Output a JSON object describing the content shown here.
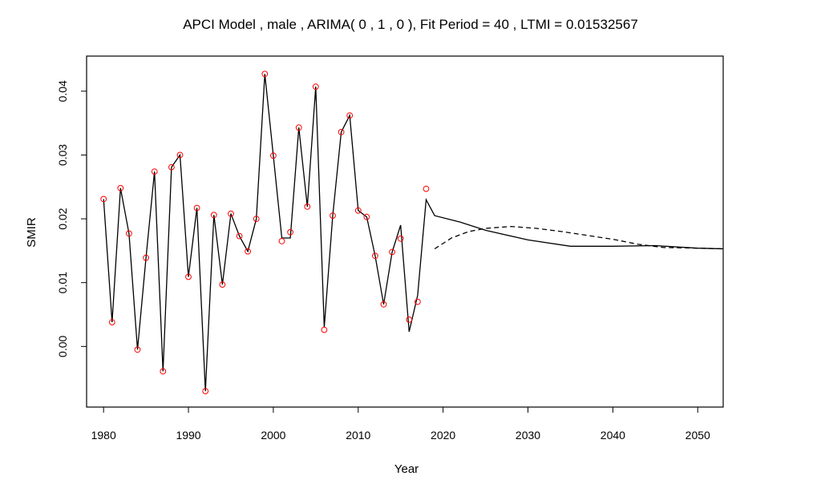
{
  "chart_data": {
    "type": "line",
    "title": "APCI  Model , male , ARIMA( 0 , 1 , 0 ), Fit Period =  40 , LTMI =  0.01532567",
    "xlabel": "Year",
    "ylabel": "SMIR",
    "xlim": [
      1978,
      2053
    ],
    "ylim": [
      -0.0095,
      0.0455
    ],
    "xticks": [
      1980,
      1990,
      2000,
      2010,
      2020,
      2030,
      2040,
      2050
    ],
    "yticks": [
      0.0,
      0.01,
      0.02,
      0.03,
      0.04
    ],
    "ytick_labels": [
      "0.00",
      "0.01",
      "0.02",
      "0.03",
      "0.04"
    ],
    "grid": false,
    "observed_points": {
      "marker": "open-circle",
      "color": "#ff0000",
      "x": [
        1980,
        1981,
        1982,
        1983,
        1984,
        1985,
        1986,
        1987,
        1988,
        1989,
        1990,
        1991,
        1992,
        1993,
        1994,
        1995,
        1996,
        1997,
        1998,
        1999,
        2000,
        2001,
        2002,
        2003,
        2004,
        2005,
        2006,
        2007,
        2008,
        2009,
        2010,
        2011,
        2012,
        2013,
        2014,
        2015,
        2016,
        2017,
        2018
      ],
      "y": [
        0.0231,
        0.0038,
        0.0248,
        0.0177,
        -0.0005,
        0.0139,
        0.0274,
        -0.0039,
        0.0281,
        0.03,
        0.0109,
        0.0217,
        -0.007,
        0.0206,
        0.0097,
        0.0208,
        0.0173,
        0.0149,
        0.02,
        0.0427,
        0.0299,
        0.0165,
        0.0179,
        0.0343,
        0.0219,
        0.0407,
        0.0026,
        0.0205,
        0.0336,
        0.0362,
        0.0213,
        0.0203,
        0.0142,
        0.0066,
        0.0148,
        0.0169,
        0.0042,
        0.007,
        0.0247
      ]
    },
    "series": [
      {
        "style": "solid",
        "color": "#000000",
        "x": [
          1980,
          1981,
          1982,
          1983,
          1984,
          1985,
          1986,
          1987,
          1988,
          1989,
          1990,
          1991,
          1992,
          1993,
          1994,
          1995,
          1996,
          1997,
          1998,
          1999,
          2000,
          2001,
          2002,
          2003,
          2004,
          2005,
          2006,
          2007,
          2008,
          2009,
          2010,
          2011,
          2012,
          2013,
          2014,
          2015,
          2016,
          2017,
          2018,
          2019,
          2022,
          2025,
          2030,
          2035,
          2040,
          2045,
          2050,
          2053
        ],
        "y": [
          0.0231,
          0.0038,
          0.0248,
          0.0177,
          -0.0005,
          0.0139,
          0.0274,
          -0.0039,
          0.0281,
          0.03,
          0.0109,
          0.0217,
          -0.007,
          0.0206,
          0.0097,
          0.0208,
          0.0173,
          0.0149,
          0.02,
          0.0427,
          0.0299,
          0.017,
          0.017,
          0.0343,
          0.0219,
          0.0407,
          0.003,
          0.0205,
          0.0336,
          0.0362,
          0.0213,
          0.0203,
          0.0142,
          0.0066,
          0.0148,
          0.019,
          0.0023,
          0.008,
          0.023,
          0.0205,
          0.0195,
          0.0182,
          0.0167,
          0.0157,
          0.0157,
          0.0158,
          0.0154,
          0.0153
        ]
      },
      {
        "style": "dashed",
        "color": "#000000",
        "x": [
          2019,
          2021,
          2023,
          2025,
          2028,
          2031,
          2034,
          2037,
          2040,
          2043,
          2046,
          2050,
          2053
        ],
        "y": [
          0.0153,
          0.017,
          0.018,
          0.0185,
          0.0188,
          0.0185,
          0.018,
          0.0174,
          0.0168,
          0.016,
          0.0155,
          0.0154,
          0.0153
        ]
      }
    ]
  }
}
